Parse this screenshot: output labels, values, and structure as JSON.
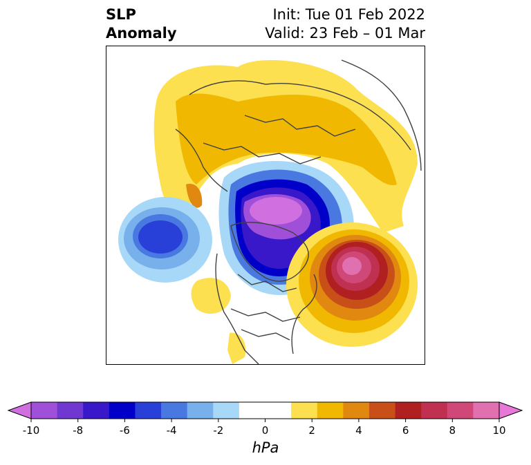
{
  "header": {
    "variable": "SLP",
    "field": "Anomaly",
    "init": "Init: Tue 01 Feb 2022",
    "valid": "Valid: 23 Feb – 01 Mar"
  },
  "colorbar": {
    "unit": "hPa",
    "min": -10,
    "max": 10,
    "step": 1.333,
    "tick_labels": [
      "-10",
      "-8",
      "-6",
      "-4",
      "-2",
      "0",
      "2",
      "4",
      "6",
      "8",
      "10"
    ],
    "colors": [
      "#d070e0",
      "#a050d8",
      "#7038d0",
      "#3818c8",
      "#0000c8",
      "#2840d8",
      "#4878e0",
      "#78b0ec",
      "#a8d8f8",
      "#ffffff",
      "#ffffff",
      "#fce050",
      "#f0b800",
      "#e08810",
      "#c85018",
      "#b02020",
      "#c03050",
      "#d04878",
      "#e070b0",
      "#e878d8"
    ]
  }
}
